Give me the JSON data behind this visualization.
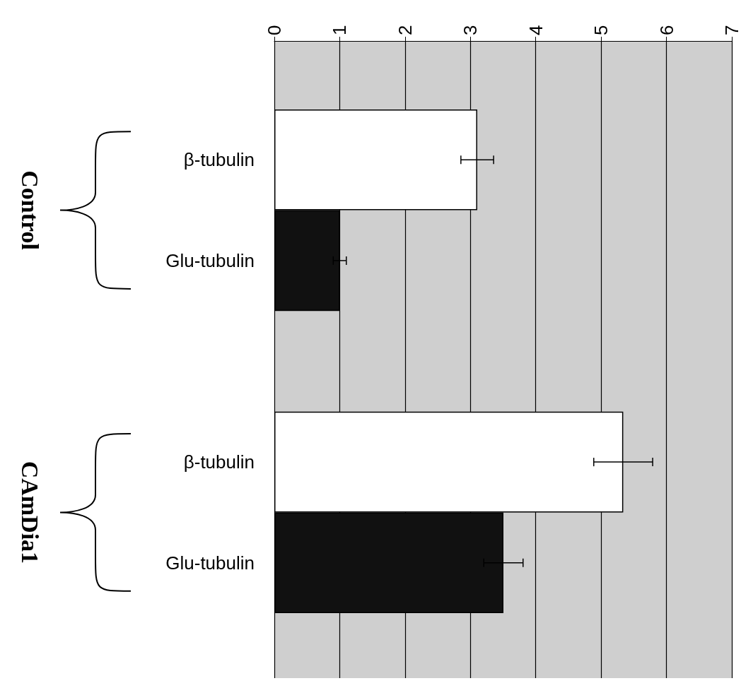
{
  "chart_data": {
    "type": "bar",
    "orientation": "horizontal",
    "categories": [
      "β-tubulin",
      "Glu-tubulin",
      null,
      "β-tubulin",
      "Glu-tubulin"
    ],
    "values": [
      3.1,
      1.0,
      null,
      5.33,
      3.5
    ],
    "colors": [
      "#ffffff",
      "#111111",
      null,
      "#ffffff",
      "#111111"
    ],
    "errors": [
      0.25,
      0.1,
      null,
      0.45,
      0.3
    ],
    "annotations": [
      "Control",
      "CAmDia1"
    ],
    "xlim": [
      0,
      7
    ],
    "xticks": [
      0,
      1,
      2,
      3,
      4,
      5,
      6,
      7
    ],
    "grid": "x"
  }
}
